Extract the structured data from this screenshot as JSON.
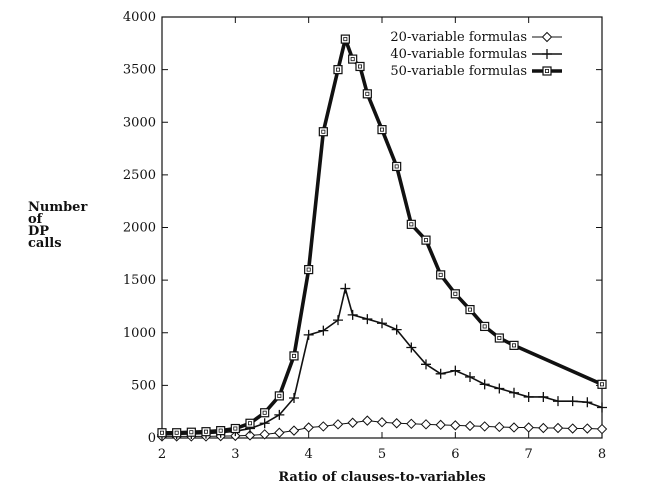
{
  "chart_data": {
    "type": "line",
    "xlabel": "Ratio of clauses-to-variables",
    "ylabel_lines": [
      "Number",
      "of",
      "DP",
      "calls"
    ],
    "xlim": [
      2,
      8
    ],
    "ylim": [
      0,
      4000
    ],
    "xticks": [
      2,
      3,
      4,
      5,
      6,
      7,
      8
    ],
    "yticks": [
      0,
      500,
      1000,
      1500,
      2000,
      2500,
      3000,
      3500,
      4000
    ],
    "grid": false,
    "legend_position": "top-right",
    "series": [
      {
        "name": "20-variable formulas",
        "marker": "diamond",
        "line_weight": "thin",
        "x": [
          2,
          2.2,
          2.4,
          2.6,
          2.8,
          3,
          3.2,
          3.4,
          3.6,
          3.8,
          4,
          4.2,
          4.4,
          4.6,
          4.8,
          5,
          5.2,
          5.4,
          5.6,
          5.8,
          6,
          6.2,
          6.4,
          6.6,
          6.8,
          7,
          7.2,
          7.4,
          7.6,
          7.8,
          8
        ],
        "y": [
          15,
          15,
          15,
          15,
          18,
          20,
          25,
          35,
          50,
          70,
          100,
          110,
          130,
          145,
          165,
          150,
          140,
          135,
          130,
          125,
          120,
          115,
          110,
          105,
          100,
          100,
          95,
          95,
          90,
          90,
          85
        ]
      },
      {
        "name": "40-variable formulas",
        "marker": "plus",
        "line_weight": "medium",
        "x": [
          2,
          2.2,
          2.4,
          2.6,
          2.8,
          3,
          3.2,
          3.4,
          3.6,
          3.8,
          4,
          4.2,
          4.4,
          4.5,
          4.6,
          4.8,
          5,
          5.2,
          5.4,
          5.6,
          5.8,
          6,
          6.2,
          6.4,
          6.6,
          6.8,
          7,
          7.2,
          7.4,
          7.6,
          7.8,
          8
        ],
        "y": [
          30,
          35,
          38,
          42,
          50,
          65,
          90,
          140,
          220,
          380,
          980,
          1020,
          1120,
          1420,
          1170,
          1130,
          1090,
          1030,
          860,
          700,
          610,
          640,
          580,
          510,
          470,
          430,
          390,
          390,
          350,
          350,
          340,
          290
        ]
      },
      {
        "name": "50-variable formulas",
        "marker": "square",
        "line_weight": "thick",
        "x": [
          2,
          2.2,
          2.4,
          2.6,
          2.8,
          3,
          3.2,
          3.4,
          3.6,
          3.8,
          4,
          4.2,
          4.4,
          4.5,
          4.6,
          4.7,
          4.8,
          5,
          5.2,
          5.4,
          5.6,
          5.8,
          6,
          6.2,
          6.4,
          6.6,
          6.8,
          8
        ],
        "y": [
          50,
          50,
          55,
          60,
          70,
          90,
          140,
          240,
          400,
          780,
          1600,
          2910,
          3500,
          3790,
          3600,
          3530,
          3270,
          2930,
          2580,
          2030,
          1880,
          1550,
          1370,
          1220,
          1060,
          950,
          880,
          510
        ]
      }
    ]
  }
}
